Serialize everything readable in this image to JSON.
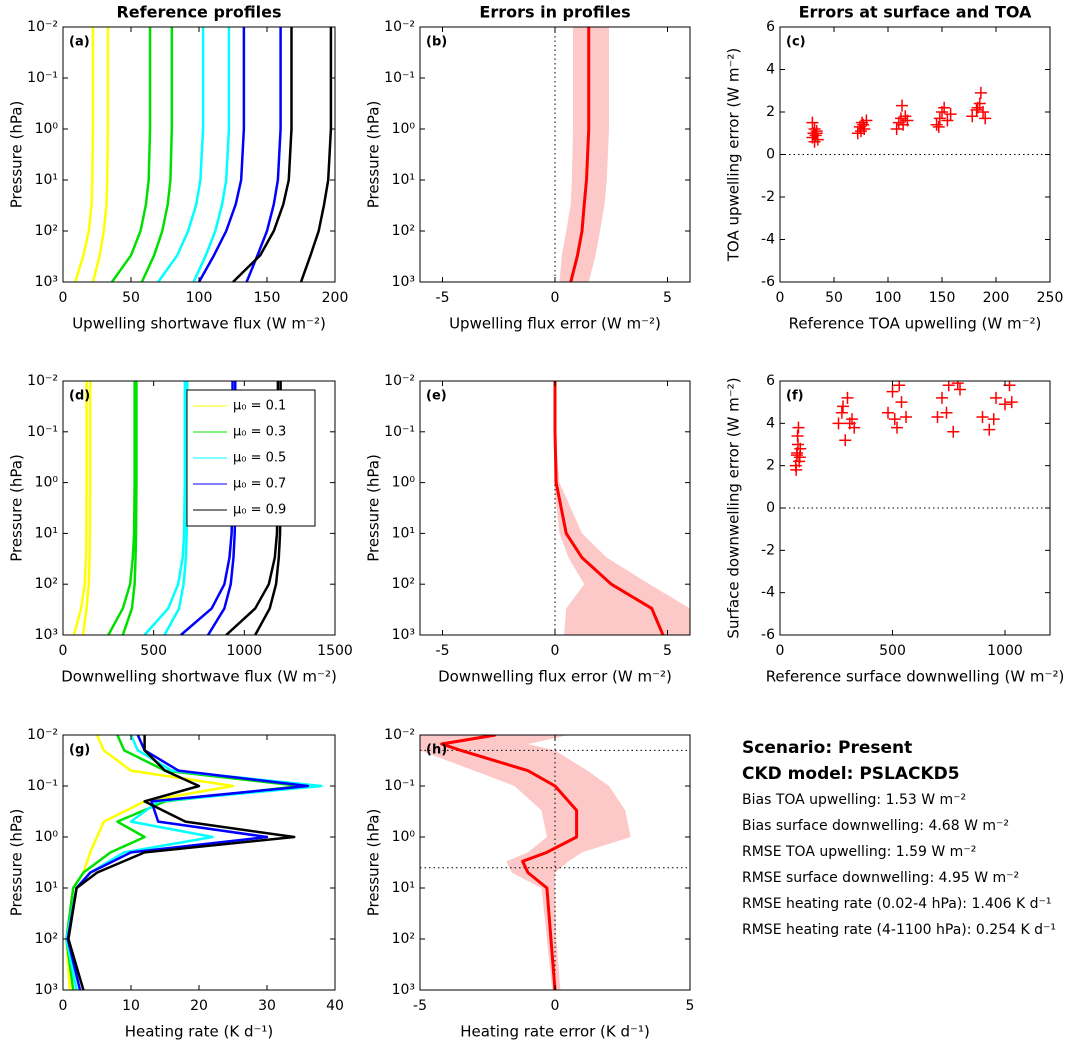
{
  "column_titles": [
    "Reference profiles",
    "Errors in profiles",
    "Errors at surface and TOA"
  ],
  "summary": {
    "heading": [
      "Scenario: Present",
      "CKD model: PSLACKD5"
    ],
    "lines": [
      "Bias TOA upwelling: 1.53 W m⁻²",
      "Bias surface downwelling: 4.68 W m⁻²",
      "RMSE TOA upwelling: 1.59 W m⁻²",
      "RMSE surface downwelling: 4.95 W m⁻²",
      "RMSE heating rate (0.02-4 hPa):  1.406 K d⁻¹",
      "RMSE heating rate (4-1100 hPa):  0.254 K d⁻¹"
    ]
  },
  "chart_data": [
    {
      "type": "line",
      "panel_label": "(a)",
      "xlabel": "Upwelling shortwave flux (W m⁻²)",
      "ylabel": "Pressure (hPa)",
      "xlim": [
        0,
        200
      ],
      "xticks": [
        0,
        50,
        100,
        150,
        200
      ],
      "ylim": [
        0.01,
        1000
      ],
      "y_log": true,
      "y_reversed": true,
      "yticks": [
        {
          "value": 0.01,
          "label": "10⁻²"
        },
        {
          "value": 0.1,
          "label": "10⁻¹"
        },
        {
          "value": 1,
          "label": "10⁰"
        },
        {
          "value": 10,
          "label": "10¹"
        },
        {
          "value": 100,
          "label": "10²"
        },
        {
          "value": 1000,
          "label": "10³"
        }
      ],
      "y": [
        0.01,
        0.1,
        1,
        10,
        30,
        100,
        300,
        1000
      ],
      "series": [
        {
          "color": "#ffff00",
          "values": [
            22,
            22,
            22,
            21.5,
            21,
            19,
            15,
            9
          ]
        },
        {
          "color": "#ffff00",
          "values": [
            33,
            33,
            33,
            32.5,
            32,
            30,
            27,
            22
          ]
        },
        {
          "color": "#00e000",
          "values": [
            64,
            64,
            64,
            63,
            61,
            57,
            50,
            36
          ]
        },
        {
          "color": "#00e000",
          "values": [
            80,
            80,
            80,
            79,
            77,
            73,
            67,
            58
          ]
        },
        {
          "color": "#00ffff",
          "values": [
            103,
            103,
            103,
            101,
            98,
            92,
            84,
            70
          ]
        },
        {
          "color": "#00ffff",
          "values": [
            122,
            122,
            122,
            120,
            117,
            112,
            105,
            96
          ]
        },
        {
          "color": "#0000ff",
          "values": [
            133,
            133,
            133,
            131,
            127,
            120,
            111,
            100
          ]
        },
        {
          "color": "#0000ff",
          "values": [
            160,
            160,
            160,
            158,
            155,
            150,
            143,
            135
          ]
        },
        {
          "color": "#000000",
          "values": [
            168,
            168,
            168,
            166,
            162,
            155,
            145,
            125
          ]
        },
        {
          "color": "#000000",
          "values": [
            197,
            197,
            197,
            195,
            192,
            188,
            182,
            175
          ]
        }
      ]
    },
    {
      "type": "line",
      "panel_label": "(b)",
      "xlabel": "Upwelling flux error (W m⁻²)",
      "ylabel": "Pressure (hPa)",
      "xlim": [
        -6,
        6
      ],
      "xticks": [
        -5,
        0,
        5
      ],
      "ylim": [
        0.01,
        1000
      ],
      "y_log": true,
      "y_reversed": true,
      "zero_line": true,
      "yticks": [
        {
          "value": 0.01,
          "label": "10⁻²"
        },
        {
          "value": 0.1,
          "label": "10⁻¹"
        },
        {
          "value": 1,
          "label": "10⁰"
        },
        {
          "value": 10,
          "label": "10¹"
        },
        {
          "value": 100,
          "label": "10²"
        },
        {
          "value": 1000,
          "label": "10³"
        }
      ],
      "y": [
        0.01,
        0.1,
        1,
        10,
        30,
        100,
        300,
        1000
      ],
      "band": {
        "color": "#fcc8c8",
        "lower": [
          0.8,
          0.8,
          0.8,
          0.75,
          0.7,
          0.5,
          0.3,
          0.2
        ],
        "upper": [
          2.4,
          2.4,
          2.4,
          2.3,
          2.2,
          2.0,
          1.8,
          1.5
        ]
      },
      "series": [
        {
          "color": "#ff0000",
          "values": [
            1.5,
            1.5,
            1.5,
            1.4,
            1.3,
            1.2,
            1.0,
            0.7
          ]
        }
      ]
    },
    {
      "type": "scatter",
      "panel_label": "(c)",
      "xlabel": "Reference TOA upwelling (W m⁻²)",
      "ylabel": "TOA upwelling error (W m⁻²)",
      "xlim": [
        0,
        250
      ],
      "xticks": [
        0,
        50,
        100,
        150,
        200,
        250
      ],
      "ylim": [
        -6,
        6
      ],
      "yticks": [
        -6,
        -4,
        -2,
        0,
        2,
        4,
        6
      ],
      "zero_line": true,
      "color": "#ff0000",
      "x": [
        30,
        31,
        32,
        33,
        34,
        35,
        30,
        32,
        34,
        72,
        74,
        76,
        78,
        80,
        75,
        77,
        108,
        110,
        112,
        114,
        116,
        118,
        113,
        145,
        148,
        150,
        152,
        155,
        158,
        147,
        178,
        182,
        185,
        188,
        190,
        186,
        183
      ],
      "values": [
        0.8,
        1.0,
        1.2,
        0.9,
        1.1,
        0.7,
        1.5,
        0.6,
        1.0,
        1.0,
        1.3,
        1.5,
        1.2,
        1.6,
        1.1,
        1.4,
        1.2,
        1.5,
        1.7,
        1.4,
        1.8,
        1.6,
        2.3,
        1.4,
        1.7,
        2.0,
        2.2,
        1.6,
        1.9,
        1.3,
        1.8,
        2.1,
        2.4,
        2.0,
        1.7,
        2.9,
        2.2
      ]
    },
    {
      "type": "line",
      "panel_label": "(d)",
      "xlabel": "Downwelling shortwave flux (W m⁻²)",
      "ylabel": "Pressure (hPa)",
      "xlim": [
        0,
        1500
      ],
      "xticks": [
        0,
        500,
        1000,
        1500
      ],
      "ylim": [
        0.01,
        1000
      ],
      "y_log": true,
      "y_reversed": true,
      "legend": "upper right",
      "yticks": [
        {
          "value": 0.01,
          "label": "10⁻²"
        },
        {
          "value": 0.1,
          "label": "10⁻¹"
        },
        {
          "value": 1,
          "label": "10⁰"
        },
        {
          "value": 10,
          "label": "10¹"
        },
        {
          "value": 100,
          "label": "10²"
        },
        {
          "value": 1000,
          "label": "10³"
        }
      ],
      "y": [
        0.01,
        0.1,
        1,
        10,
        30,
        100,
        300,
        1000
      ],
      "series": [
        {
          "name": "μ₀ = 0.1",
          "color": "#ffff00",
          "values": [
            130,
            130,
            130,
            129,
            127,
            120,
            100,
            60
          ]
        },
        {
          "color": "#ffff00",
          "values": [
            150,
            150,
            150,
            149,
            147,
            142,
            130,
            110
          ]
        },
        {
          "name": "μ₀ = 0.3",
          "color": "#00e000",
          "values": [
            395,
            395,
            395,
            392,
            385,
            370,
            330,
            250
          ]
        },
        {
          "color": "#00e000",
          "values": [
            405,
            405,
            405,
            403,
            400,
            395,
            380,
            330
          ]
        },
        {
          "name": "μ₀ = 0.5",
          "color": "#00ffff",
          "values": [
            672,
            672,
            672,
            668,
            660,
            635,
            580,
            450
          ]
        },
        {
          "color": "#00ffff",
          "values": [
            685,
            685,
            685,
            682,
            678,
            665,
            640,
            560
          ]
        },
        {
          "name": "μ₀ = 0.7",
          "color": "#0000ff",
          "values": [
            935,
            935,
            935,
            930,
            918,
            890,
            820,
            650
          ]
        },
        {
          "color": "#0000ff",
          "values": [
            950,
            950,
            950,
            947,
            940,
            925,
            890,
            800
          ]
        },
        {
          "name": "μ₀ = 0.9",
          "color": "#000000",
          "values": [
            1185,
            1185,
            1185,
            1180,
            1168,
            1135,
            1060,
            900
          ]
        },
        {
          "color": "#000000",
          "values": [
            1200,
            1200,
            1200,
            1197,
            1190,
            1175,
            1140,
            1060
          ]
        }
      ]
    },
    {
      "type": "line",
      "panel_label": "(e)",
      "xlabel": "Downwelling flux error (W m⁻²)",
      "ylabel": "Pressure (hPa)",
      "xlim": [
        -6,
        6
      ],
      "xticks": [
        -5,
        0,
        5
      ],
      "ylim": [
        0.01,
        1000
      ],
      "y_log": true,
      "y_reversed": true,
      "zero_line": true,
      "yticks": [
        {
          "value": 0.01,
          "label": "10⁻²"
        },
        {
          "value": 0.1,
          "label": "10⁻¹"
        },
        {
          "value": 1,
          "label": "10⁰"
        },
        {
          "value": 10,
          "label": "10¹"
        },
        {
          "value": 100,
          "label": "10²"
        },
        {
          "value": 1000,
          "label": "10³"
        }
      ],
      "y": [
        0.01,
        0.1,
        1,
        10,
        30,
        100,
        300,
        1000
      ],
      "band": {
        "color": "#fcc8c8",
        "lower": [
          0,
          0,
          -0.05,
          0.2,
          0.6,
          1.3,
          0.5,
          0.4
        ],
        "upper": [
          0,
          0,
          0.2,
          1.2,
          2.3,
          4.2,
          6,
          6
        ]
      },
      "series": [
        {
          "color": "#ff0000",
          "values": [
            0,
            0,
            0.05,
            0.5,
            1.2,
            2.5,
            4.3,
            4.8
          ]
        }
      ]
    },
    {
      "type": "scatter",
      "panel_label": "(f)",
      "xlabel": "Reference surface downwelling (W m⁻²)",
      "ylabel": "Surface downwelling error (W m⁻²)",
      "xlim": [
        0,
        1200
      ],
      "xticks": [
        0,
        500,
        1000
      ],
      "ylim": [
        -6,
        6
      ],
      "yticks": [
        -6,
        -4,
        -2,
        0,
        2,
        4,
        6
      ],
      "zero_line": true,
      "color": "#ff0000",
      "x": [
        70,
        75,
        80,
        85,
        90,
        72,
        78,
        88,
        82,
        76,
        260,
        275,
        290,
        300,
        320,
        330,
        280,
        310,
        480,
        500,
        520,
        540,
        560,
        510,
        530,
        700,
        720,
        750,
        770,
        790,
        740,
        800,
        900,
        930,
        960,
        1000,
        1020,
        1030,
        950
      ],
      "values": [
        2.0,
        2.5,
        3.0,
        2.2,
        2.8,
        1.8,
        3.4,
        2.4,
        3.8,
        2.6,
        4.0,
        4.5,
        3.2,
        5.2,
        4.2,
        3.8,
        4.8,
        4.0,
        4.5,
        5.5,
        3.8,
        5.0,
        4.3,
        4.2,
        5.8,
        4.3,
        5.2,
        5.8,
        3.6,
        5.9,
        4.5,
        5.6,
        4.3,
        3.7,
        5.2,
        4.9,
        5.8,
        5.0,
        4.2
      ]
    },
    {
      "type": "line",
      "panel_label": "(g)",
      "xlabel": "Heating rate (K d⁻¹)",
      "ylabel": "Pressure (hPa)",
      "xlim": [
        0,
        40
      ],
      "xticks": [
        0,
        10,
        20,
        30,
        40
      ],
      "ylim": [
        0.01,
        1000
      ],
      "y_log": true,
      "y_reversed": true,
      "yticks": [
        {
          "value": 0.01,
          "label": "10⁻²"
        },
        {
          "value": 0.1,
          "label": "10⁻¹"
        },
        {
          "value": 1,
          "label": "10⁰"
        },
        {
          "value": 10,
          "label": "10¹"
        },
        {
          "value": 100,
          "label": "10²"
        },
        {
          "value": 1000,
          "label": "10³"
        }
      ],
      "y": [
        0.01,
        0.02,
        0.05,
        0.1,
        0.2,
        0.5,
        1,
        2,
        5,
        10,
        100,
        1000
      ],
      "series": [
        {
          "color": "#ffff00",
          "values": [
            5,
            6,
            10,
            25,
            12,
            6,
            5,
            4,
            3,
            1.5,
            0.5,
            1
          ]
        },
        {
          "color": "#00e000",
          "values": [
            8,
            9,
            15,
            35,
            15,
            8,
            12,
            7,
            3,
            1.5,
            0.5,
            1.5
          ]
        },
        {
          "color": "#00ffff",
          "values": [
            10,
            11,
            16,
            38,
            14,
            10,
            22,
            9,
            4,
            2,
            0.5,
            2
          ]
        },
        {
          "color": "#0000ff",
          "values": [
            11,
            12,
            17,
            36,
            13,
            14,
            30,
            10,
            4,
            2,
            0.7,
            2.5
          ]
        },
        {
          "color": "#000000",
          "values": [
            12,
            12,
            15,
            20,
            12,
            18,
            34,
            12,
            5,
            2,
            0.8,
            3
          ]
        }
      ]
    },
    {
      "type": "line",
      "panel_label": "(h)",
      "xlabel": "Heating rate error (K d⁻¹)",
      "ylabel": "Pressure (hPa)",
      "xlim": [
        -5,
        5
      ],
      "xticks": [
        -5,
        0,
        5
      ],
      "ylim": [
        0.01,
        1000
      ],
      "y_log": true,
      "y_reversed": true,
      "zero_line": true,
      "ref_lines": [
        0.02,
        4
      ],
      "yticks": [
        {
          "value": 0.01,
          "label": "10⁻²"
        },
        {
          "value": 0.1,
          "label": "10⁻¹"
        },
        {
          "value": 1,
          "label": "10⁰"
        },
        {
          "value": 10,
          "label": "10¹"
        },
        {
          "value": 100,
          "label": "10²"
        },
        {
          "value": 1000,
          "label": "10³"
        }
      ],
      "y": [
        0.01,
        0.015,
        0.02,
        0.05,
        0.1,
        0.3,
        1,
        2,
        3,
        5,
        10,
        100,
        1000
      ],
      "band": {
        "color": "#fcc8c8",
        "lower": [
          -5,
          -5,
          -5,
          -3,
          -1.5,
          -0.5,
          -0.3,
          -1,
          -1.8,
          -1.6,
          -0.5,
          -0.3,
          -0.1
        ],
        "upper": [
          0.5,
          -1,
          0,
          1.2,
          2,
          2.6,
          2.8,
          1,
          0.5,
          0,
          0,
          0.05,
          0.2
        ]
      },
      "series": [
        {
          "color": "#ff0000",
          "values": [
            -2.2,
            -4.2,
            -3.5,
            -1,
            0,
            0.8,
            0.8,
            -0.3,
            -1.2,
            -1,
            -0.3,
            -0.15,
            0
          ]
        }
      ]
    }
  ]
}
